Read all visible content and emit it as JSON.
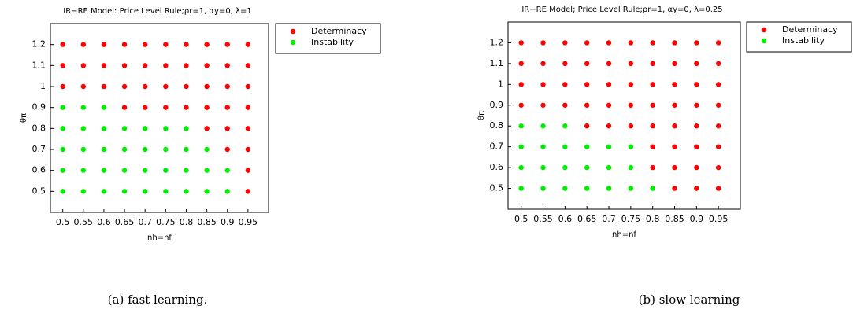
{
  "chart_data": [
    {
      "type": "scatter",
      "title": "IR−RE Model: Price Level Rule;ρr=1, αy=0, λ=1",
      "x_label": "nh=nf",
      "y_label": "θπ",
      "caption": "(a) fast learning.",
      "xlim": [
        0.47,
        1.0
      ],
      "ylim": [
        0.4,
        1.3
      ],
      "xticks": [
        0.5,
        0.55,
        0.6,
        0.65,
        0.7,
        0.75,
        0.8,
        0.85,
        0.9,
        0.95
      ],
      "yticks": [
        0.5,
        0.6,
        0.7,
        0.8,
        0.9,
        1,
        1.1,
        1.2
      ],
      "legend": "outside-top-right",
      "series": [
        {
          "name": "Determinacy",
          "color": "#ff0000",
          "x": [
            0.5,
            0.55,
            0.6,
            0.65,
            0.7,
            0.75,
            0.8,
            0.85,
            0.9,
            0.95,
            0.5,
            0.55,
            0.6,
            0.65,
            0.7,
            0.75,
            0.8,
            0.85,
            0.9,
            0.95,
            0.5,
            0.55,
            0.6,
            0.65,
            0.7,
            0.75,
            0.8,
            0.85,
            0.9,
            0.95,
            0.65,
            0.7,
            0.75,
            0.8,
            0.85,
            0.9,
            0.95,
            0.85,
            0.9,
            0.95,
            0.9,
            0.95,
            0.95,
            0.95
          ],
          "y": [
            1.2,
            1.2,
            1.2,
            1.2,
            1.2,
            1.2,
            1.2,
            1.2,
            1.2,
            1.2,
            1.1,
            1.1,
            1.1,
            1.1,
            1.1,
            1.1,
            1.1,
            1.1,
            1.1,
            1.1,
            1,
            1,
            1,
            1,
            1,
            1,
            1,
            1,
            1,
            1,
            0.9,
            0.9,
            0.9,
            0.9,
            0.9,
            0.9,
            0.9,
            0.8,
            0.8,
            0.8,
            0.7,
            0.7,
            0.6,
            0.5
          ]
        },
        {
          "name": "Instability",
          "color": "#00ee00",
          "x": [
            0.5,
            0.55,
            0.6,
            0.5,
            0.55,
            0.6,
            0.65,
            0.7,
            0.75,
            0.8,
            0.5,
            0.55,
            0.6,
            0.65,
            0.7,
            0.75,
            0.8,
            0.85,
            0.5,
            0.55,
            0.6,
            0.65,
            0.7,
            0.75,
            0.8,
            0.85,
            0.9,
            0.5,
            0.55,
            0.6,
            0.65,
            0.7,
            0.75,
            0.8,
            0.85,
            0.9
          ],
          "y": [
            0.9,
            0.9,
            0.9,
            0.8,
            0.8,
            0.8,
            0.8,
            0.8,
            0.8,
            0.8,
            0.7,
            0.7,
            0.7,
            0.7,
            0.7,
            0.7,
            0.7,
            0.7,
            0.6,
            0.6,
            0.6,
            0.6,
            0.6,
            0.6,
            0.6,
            0.6,
            0.6,
            0.5,
            0.5,
            0.5,
            0.5,
            0.5,
            0.5,
            0.5,
            0.5,
            0.5
          ]
        }
      ]
    },
    {
      "type": "scatter",
      "title": "IR−RE Model; Price Level Rule;ρr=1, αy=0, λ=0.25",
      "x_label": "nh=nf",
      "y_label": "θπ",
      "caption": "(b) slow learning",
      "xlim": [
        0.47,
        1.0
      ],
      "ylim": [
        0.4,
        1.3
      ],
      "xticks": [
        0.5,
        0.55,
        0.6,
        0.65,
        0.7,
        0.75,
        0.8,
        0.85,
        0.9,
        0.95
      ],
      "yticks": [
        0.5,
        0.6,
        0.7,
        0.8,
        0.9,
        1,
        1.1,
        1.2
      ],
      "legend": "outside-top-right",
      "series": [
        {
          "name": "Determinacy",
          "color": "#ff0000",
          "x": [
            0.5,
            0.55,
            0.6,
            0.65,
            0.7,
            0.75,
            0.8,
            0.85,
            0.9,
            0.95,
            0.5,
            0.55,
            0.6,
            0.65,
            0.7,
            0.75,
            0.8,
            0.85,
            0.9,
            0.95,
            0.5,
            0.55,
            0.6,
            0.65,
            0.7,
            0.75,
            0.8,
            0.85,
            0.9,
            0.95,
            0.5,
            0.55,
            0.6,
            0.65,
            0.7,
            0.75,
            0.8,
            0.85,
            0.9,
            0.95,
            0.65,
            0.7,
            0.75,
            0.8,
            0.85,
            0.9,
            0.95,
            0.8,
            0.85,
            0.9,
            0.95,
            0.8,
            0.85,
            0.9,
            0.95,
            0.85,
            0.9,
            0.95
          ],
          "y": [
            1.2,
            1.2,
            1.2,
            1.2,
            1.2,
            1.2,
            1.2,
            1.2,
            1.2,
            1.2,
            1.1,
            1.1,
            1.1,
            1.1,
            1.1,
            1.1,
            1.1,
            1.1,
            1.1,
            1.1,
            1,
            1,
            1,
            1,
            1,
            1,
            1,
            1,
            1,
            1,
            0.9,
            0.9,
            0.9,
            0.9,
            0.9,
            0.9,
            0.9,
            0.9,
            0.9,
            0.9,
            0.8,
            0.8,
            0.8,
            0.8,
            0.8,
            0.8,
            0.8,
            0.7,
            0.7,
            0.7,
            0.7,
            0.6,
            0.6,
            0.6,
            0.6,
            0.5,
            0.5,
            0.5
          ]
        },
        {
          "name": "Instability",
          "color": "#00ee00",
          "x": [
            0.5,
            0.55,
            0.6,
            0.5,
            0.55,
            0.6,
            0.65,
            0.7,
            0.75,
            0.5,
            0.55,
            0.6,
            0.65,
            0.7,
            0.75,
            0.5,
            0.55,
            0.6,
            0.65,
            0.7,
            0.75,
            0.8
          ],
          "y": [
            0.8,
            0.8,
            0.8,
            0.7,
            0.7,
            0.7,
            0.7,
            0.7,
            0.7,
            0.6,
            0.6,
            0.6,
            0.6,
            0.6,
            0.6,
            0.5,
            0.5,
            0.5,
            0.5,
            0.5,
            0.5,
            0.5
          ]
        }
      ]
    }
  ]
}
